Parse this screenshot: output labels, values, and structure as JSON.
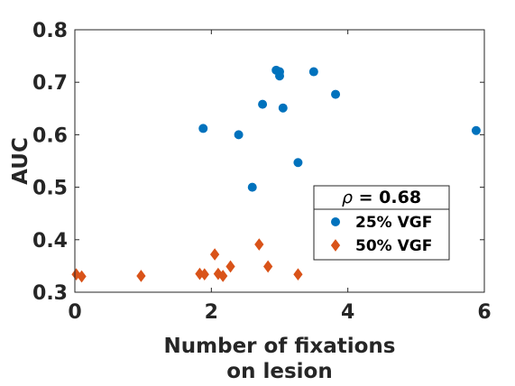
{
  "chart_data": {
    "type": "scatter",
    "xlabel": [
      "Number of fixations",
      "on lesion"
    ],
    "ylabel": "AUC",
    "xlim": [
      0,
      6
    ],
    "ylim": [
      0.3,
      0.8
    ],
    "xticks": [
      0,
      2,
      4,
      6
    ],
    "yticks": [
      0.3,
      0.4,
      0.5,
      0.6,
      0.7,
      0.8
    ],
    "xtick_labels": [
      "0",
      "2",
      "4",
      "6"
    ],
    "ytick_labels": [
      "0.3",
      "0.4",
      "0.5",
      "0.6",
      "0.7",
      "0.8"
    ],
    "grid": false,
    "legend": {
      "placement": "lower-right",
      "title_symbol": "ρ",
      "title_value": " = 0.68"
    },
    "series": [
      {
        "name": "25% VGF",
        "marker": "circle",
        "color": "#0072BD",
        "points": [
          {
            "x": 1.88,
            "y": 0.612
          },
          {
            "x": 2.4,
            "y": 0.6
          },
          {
            "x": 2.6,
            "y": 0.5
          },
          {
            "x": 2.75,
            "y": 0.658
          },
          {
            "x": 2.95,
            "y": 0.723
          },
          {
            "x": 3.0,
            "y": 0.72
          },
          {
            "x": 3.0,
            "y": 0.712
          },
          {
            "x": 3.05,
            "y": 0.651
          },
          {
            "x": 3.27,
            "y": 0.547
          },
          {
            "x": 3.5,
            "y": 0.72
          },
          {
            "x": 3.82,
            "y": 0.677
          },
          {
            "x": 5.88,
            "y": 0.608
          }
        ]
      },
      {
        "name": "50% VGF",
        "marker": "diamond",
        "color": "#D95319",
        "points": [
          {
            "x": 0.02,
            "y": 0.334
          },
          {
            "x": 0.1,
            "y": 0.33
          },
          {
            "x": 0.97,
            "y": 0.331
          },
          {
            "x": 1.83,
            "y": 0.335
          },
          {
            "x": 1.9,
            "y": 0.334
          },
          {
            "x": 2.05,
            "y": 0.372
          },
          {
            "x": 2.1,
            "y": 0.335
          },
          {
            "x": 2.17,
            "y": 0.331
          },
          {
            "x": 2.28,
            "y": 0.349
          },
          {
            "x": 2.7,
            "y": 0.391
          },
          {
            "x": 2.83,
            "y": 0.349
          },
          {
            "x": 3.27,
            "y": 0.334
          }
        ]
      }
    ]
  }
}
